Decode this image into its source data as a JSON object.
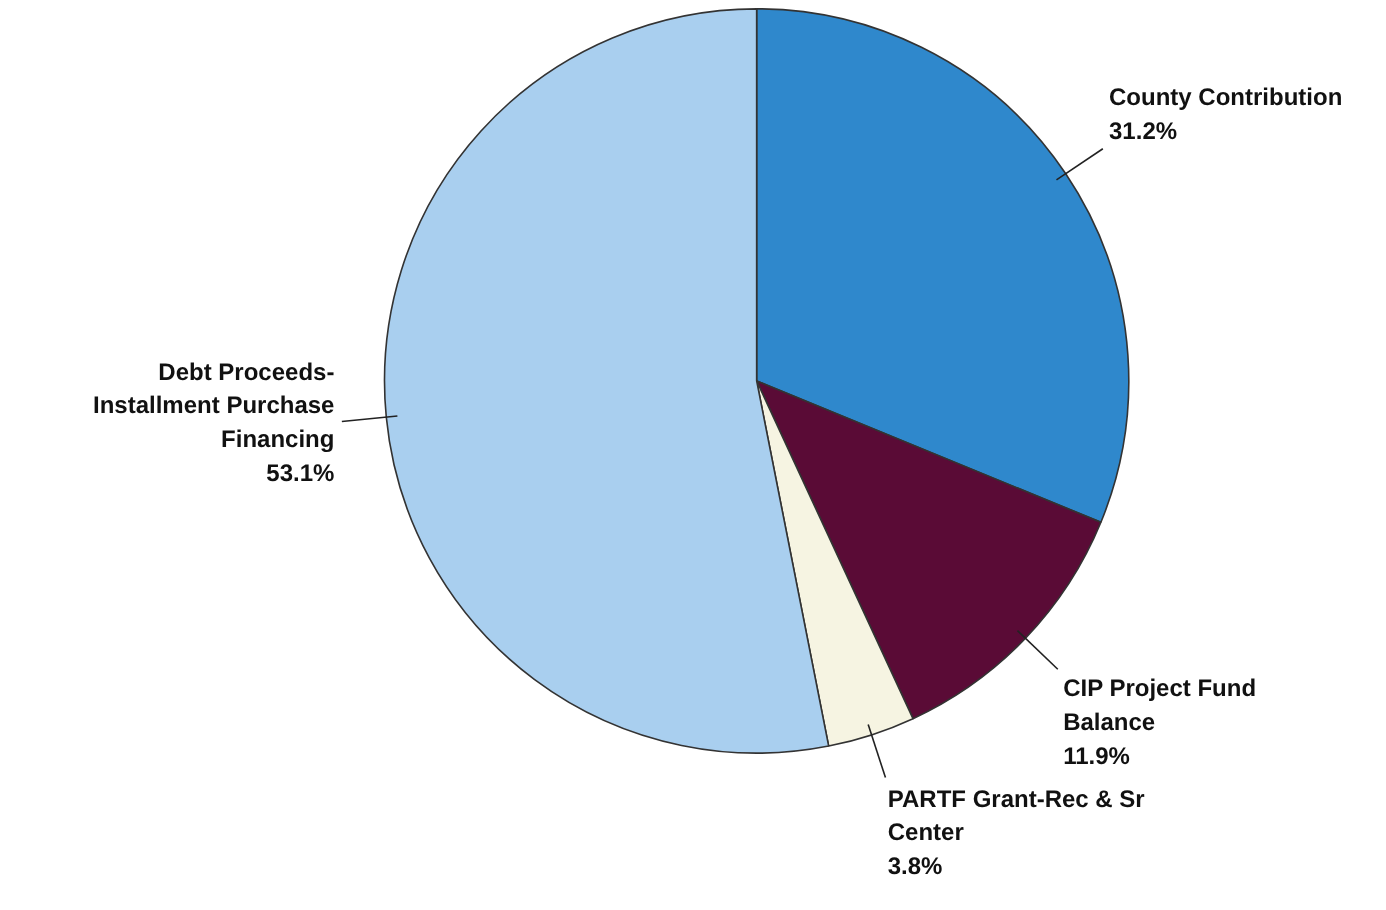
{
  "chart_data": {
    "type": "pie",
    "categories": [
      "County Contribution",
      "CIP Project Fund Balance",
      "PARTF Grant-Rec & Sr Center",
      "Debt Proceeds-Installment Purchase Financing"
    ],
    "values": [
      31.2,
      11.9,
      3.8,
      53.1
    ],
    "colors": [
      "#2f88cc",
      "#5a0b36",
      "#f6f4e2",
      "#a9cfef"
    ],
    "value_labels": [
      "31.2%",
      "11.9%",
      "3.8%",
      "53.1%"
    ]
  }
}
